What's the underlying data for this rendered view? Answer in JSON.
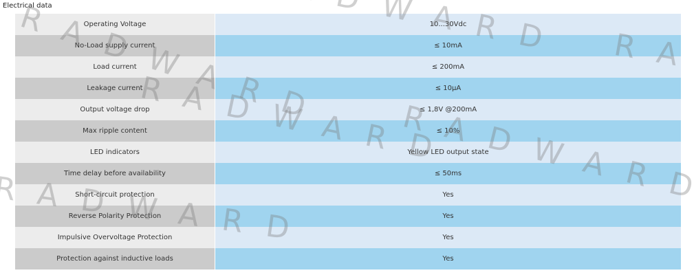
{
  "header": {
    "title": "Electrical data"
  },
  "table": {
    "rows": [
      [
        "Operating Voltage",
        "10...30Vdc"
      ],
      [
        "No-Load supply current",
        "≤ 10mA"
      ],
      [
        "Load current",
        "≤ 200mA"
      ],
      [
        "Leakage current",
        "≤ 10µA"
      ],
      [
        "Output voltage drop",
        "≤ 1,8V @200mA"
      ],
      [
        "Max ripple content",
        "≤ 10%"
      ],
      [
        "LED indicators",
        "Yellow LED output state"
      ],
      [
        "Time delay before availability",
        "≤ 50ms"
      ],
      [
        "Short-circuit protection",
        "Yes"
      ],
      [
        "Reverse Polarity Protection",
        "Yes"
      ],
      [
        "Impulsive Overvoltage Protection",
        "Yes"
      ],
      [
        "Protection against inductive loads",
        "Yes"
      ]
    ]
  },
  "watermark": "RADWARD"
}
